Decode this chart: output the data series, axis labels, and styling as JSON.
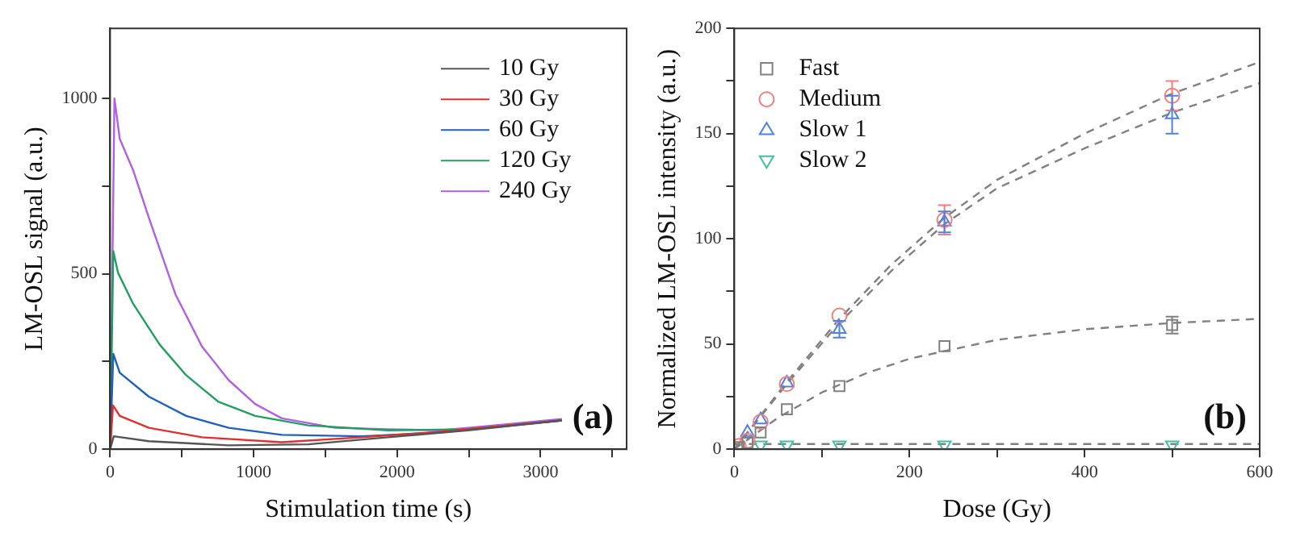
{
  "chart_data": [
    {
      "type": "line",
      "xlabel": "Stimulation time (s)",
      "ylabel": "LM-OSL signal (a.u.)",
      "xlim": [
        0,
        3600
      ],
      "xticks": [
        0,
        {
          "value": 500,
          "label": null
        },
        1000,
        {
          "value": 1500,
          "label": null
        },
        2000,
        {
          "value": 2500,
          "label": null
        },
        3000,
        {
          "value": 3500,
          "label": null
        }
      ],
      "ylim": [
        0,
        1200
      ],
      "yticks": [
        0,
        {
          "value": 250,
          "label": null
        },
        500,
        {
          "value": 750,
          "label": null
        },
        1000
      ],
      "grid": false,
      "legend": "top right",
      "marker": "none",
      "line_style": "solid",
      "annotations": [
        "(a)"
      ],
      "series": [
        {
          "name": "10 Gy",
          "color": "#555555",
          "x": [
            0,
            25,
            270,
            826,
            1381,
            1937,
            2493,
            3148
          ],
          "values": [
            0,
            37,
            23,
            11,
            14,
            34,
            54,
            82
          ]
        },
        {
          "name": "30 Gy",
          "color": "#e03030",
          "x": [
            0,
            20,
            67,
            270,
            640,
            1196,
            1752,
            2307,
            3148
          ],
          "values": [
            0,
            125,
            95,
            61,
            34,
            20,
            34,
            50,
            82
          ]
        },
        {
          "name": "60 Gy",
          "color": "#2060c0",
          "x": [
            0,
            22,
            67,
            270,
            530,
            826,
            1196,
            1752,
            2307,
            3148
          ],
          "values": [
            0,
            272,
            218,
            150,
            95,
            61,
            41,
            37,
            48,
            82
          ]
        },
        {
          "name": "120 Gy",
          "color": "#20a060",
          "x": [
            0,
            22,
            55,
            160,
            344,
            530,
            752,
            1011,
            1381,
            1937,
            2493,
            3148
          ],
          "values": [
            0,
            565,
            503,
            415,
            299,
            211,
            136,
            95,
            68,
            54,
            57,
            82
          ]
        },
        {
          "name": "240 Gy",
          "color": "#b060e0",
          "x": [
            0,
            30,
            67,
            160,
            270,
            455,
            640,
            826,
            1011,
            1196,
            1567,
            1937,
            2307,
            2678,
            3148
          ],
          "values": [
            0,
            1000,
            885,
            796,
            660,
            442,
            293,
            197,
            129,
            88,
            61,
            57,
            54,
            68,
            86
          ]
        }
      ]
    },
    {
      "type": "scatter",
      "xlabel": "Dose (Gy)",
      "ylabel": "Normalized LM-OSL intensity (a.u.)",
      "xlim": [
        0,
        600
      ],
      "xticks": [
        0,
        {
          "value": 100,
          "label": null
        },
        200,
        {
          "value": 300,
          "label": null
        },
        400,
        {
          "value": 500,
          "label": null
        },
        600
      ],
      "ylim": [
        0,
        200
      ],
      "yticks": [
        0,
        {
          "value": 25,
          "label": null
        },
        50,
        {
          "value": 75,
          "label": null
        },
        100,
        {
          "value": 125,
          "label": null
        },
        150,
        {
          "value": 175,
          "label": null
        },
        200
      ],
      "grid": false,
      "legend": "top left",
      "annotations": [
        "(b)"
      ],
      "series": [
        {
          "name": "Fast",
          "color": "#808080",
          "marker": "square",
          "x": [
            5,
            15,
            30,
            60,
            120,
            240,
            500
          ],
          "values": [
            1,
            3,
            8,
            19,
            30,
            49,
            59
          ],
          "errors": [
            null,
            null,
            null,
            null,
            null,
            null,
            4
          ]
        },
        {
          "name": "Medium",
          "color": "#f08080",
          "marker": "circle",
          "x": [
            5,
            15,
            30,
            60,
            120,
            240,
            500
          ],
          "values": [
            1.5,
            4,
            13,
            31,
            63.5,
            109,
            168
          ],
          "errors": [
            null,
            null,
            null,
            null,
            null,
            7,
            7
          ]
        },
        {
          "name": "Slow 1",
          "color": "#5080e0",
          "marker": "triangle",
          "x": [
            15,
            30,
            60,
            120,
            240,
            500
          ],
          "values": [
            8,
            14,
            31.5,
            57,
            108,
            159
          ],
          "errors": [
            null,
            null,
            null,
            4,
            5,
            9
          ]
        },
        {
          "name": "Slow 2",
          "color": "#40c0a0",
          "marker": "triangle-down",
          "x": [
            30,
            60,
            120,
            240,
            500
          ],
          "values": [
            2,
            2,
            2,
            2,
            2
          ]
        },
        {
          "type": "line",
          "color": "#808080",
          "line_style": "dashed",
          "x": [
            0,
            50,
            100,
            150,
            200,
            300,
            400,
            500,
            600
          ],
          "values": [
            0,
            15,
            27,
            36,
            43,
            52,
            57,
            60,
            62
          ]
        },
        {
          "type": "line",
          "color": "#808080",
          "line_style": "dashed",
          "x": [
            0,
            60,
            120,
            180,
            240,
            300,
            400,
            500,
            600
          ],
          "values": [
            0,
            32,
            62,
            88,
            110,
            128,
            150,
            169,
            184
          ]
        },
        {
          "type": "line",
          "color": "#808080",
          "line_style": "dashed",
          "x": [
            0,
            60,
            120,
            180,
            240,
            300,
            400,
            500,
            600
          ],
          "values": [
            0,
            31,
            60,
            85,
            107,
            124,
            143,
            160,
            174
          ]
        },
        {
          "type": "line",
          "color": "#808080",
          "line_style": "dashed",
          "x": [
            0,
            600
          ],
          "values": [
            2.5,
            2.5
          ]
        }
      ]
    }
  ]
}
